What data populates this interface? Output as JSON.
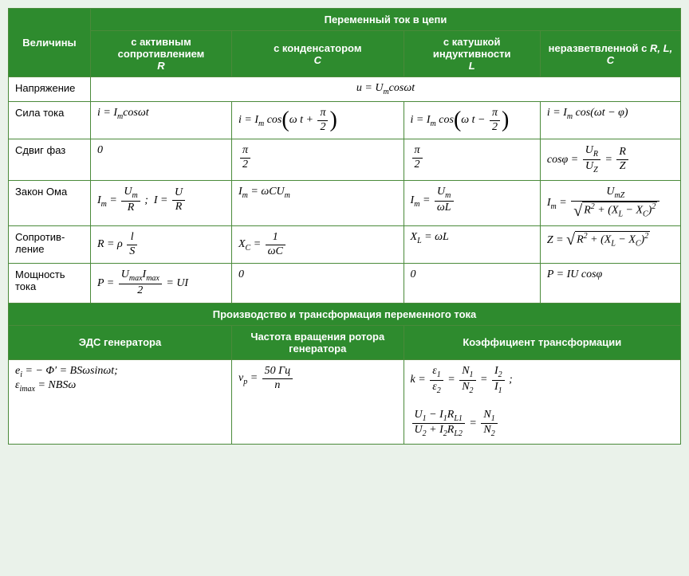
{
  "colors": {
    "header_bg": "#2e8b2e",
    "header_fg": "#ffffff",
    "border": "#4a8a3a",
    "page_bg": "#eaf2ea",
    "cell_bg": "#ffffff",
    "text": "#000000"
  },
  "fonts": {
    "header_family": "Arial, sans-serif",
    "body_family": "Times New Roman, serif",
    "header_size_pt": 11,
    "body_size_pt": 12
  },
  "table1": {
    "header_top": "Переменный ток в цепи",
    "row_header": "Величины",
    "cols": [
      "с активным сопротивлением",
      "с конденсатором",
      "с катушкой индуктивности",
      "неразветвленной с"
    ],
    "col_sym": [
      "R",
      "C",
      "L",
      "R, L, C"
    ],
    "rows": {
      "voltage": {
        "label": "Напряжение",
        "merged_formula": "u = Uₘcosωt"
      },
      "current": {
        "label": "Сила тока",
        "r": "i = Iₘcosωt",
        "c": "i = Iₘ cos(ωt + π/2)",
        "l": "i = Iₘ cos(ωt − π/2)",
        "rlc": "i = Iₘ cos(ωt − φ)"
      },
      "phase": {
        "label": "Сдвиг фаз",
        "r": "0",
        "c": "π/2",
        "l": "π/2",
        "rlc": "cosφ = U_R / U_Z = R / Z"
      },
      "ohm": {
        "label": "Закон Ома",
        "r": "Iₘ = Uₘ/R ;  I = U/R",
        "c": "Iₘ = ωCUₘ",
        "l": "Iₘ = Uₘ/(ωL)",
        "rlc": "Iₘ = U_mZ / √(R² + (X_L − X_C)²)"
      },
      "resistance": {
        "label": "Сопротив-\nление",
        "r": "R = ρ l/S",
        "c": "X_C = 1/(ωC)",
        "l": "X_L = ωL",
        "rlc": "Z = √(R² + (X_L − X_C)²)"
      },
      "power": {
        "label": "Мощность тока",
        "r": "P = (Uₘₐₓ Iₘₐₓ)/2 = UI",
        "c": "0",
        "l": "0",
        "rlc": "P = IU cosφ"
      }
    }
  },
  "table2": {
    "header": "Производство и трансформация переменного тока",
    "cols": [
      "ЭДС генератора",
      "Частота вращения ротора генератора",
      "Коэффициент трансформации"
    ],
    "emf": {
      "line1": "eᵢ = − Φ′ = BSω sinωt;",
      "line2": "ε_imax = NBSω"
    },
    "freq": "ν_p = 50 Гц / n",
    "trans": {
      "line1": "k = ε₁/ε₂ = N₁/N₂ = I₂/I₁ ;",
      "line2": "(U₁ − I₁R_L1)/(U₂ + I₂R_L2) = N₁/N₂"
    }
  }
}
